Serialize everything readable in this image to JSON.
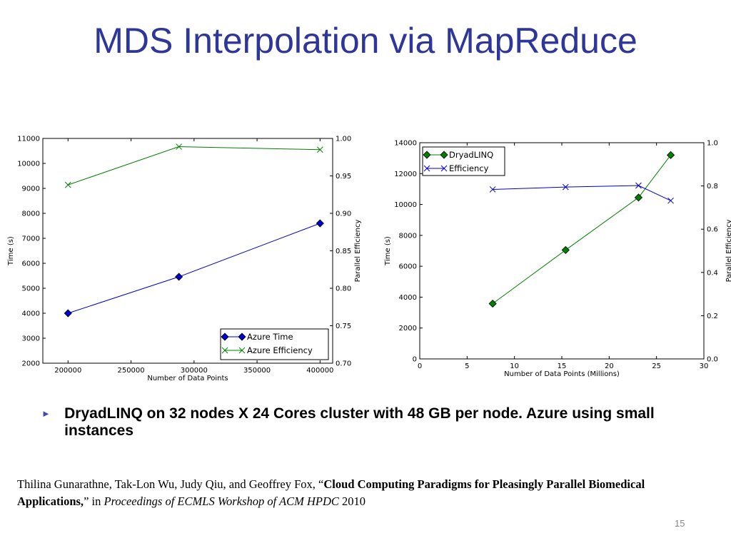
{
  "slide": {
    "title": "MDS Interpolation via MapReduce",
    "bullet": "DryadLINQ on 32 nodes X 24 Cores cluster with 48 GB per node. Azure using small instances",
    "citation": {
      "authors": "Thilina Gunarathne, Tak-Lon Wu, Judy Qiu, and Geoffrey Fox, “",
      "paper_title": "Cloud Computing Paradigms for Pleasingly Parallel Biomedical Applications,",
      "close_quote": "” in ",
      "venue": "Proceedings of ECMLS Workshop of ACM HPDC",
      "year": " 2010"
    },
    "page_number": "15",
    "colors": {
      "title": "#2f3699",
      "blue_series": "#0000cc",
      "green_series": "#008000"
    }
  },
  "chart_data": [
    {
      "type": "line",
      "xlabel": "Number of Data Points",
      "ylabel": "Time (s)",
      "y2label": "Parallel Efficiency",
      "xlim": [
        180000,
        410000
      ],
      "ylim": [
        2000,
        11000
      ],
      "y2lim": [
        0.7,
        1.0
      ],
      "xticks": [
        200000,
        250000,
        300000,
        350000,
        400000
      ],
      "yticks": [
        2000,
        3000,
        4000,
        5000,
        6000,
        7000,
        8000,
        9000,
        10000,
        11000
      ],
      "y2ticks": [
        "0.70",
        "0.75",
        "0.80",
        "0.85",
        "0.90",
        "0.95",
        "1.00"
      ],
      "grid": false,
      "legend_position": "bottom-right",
      "series": [
        {
          "name": "Azure Time",
          "axis": "left",
          "marker": "diamond",
          "color": "#0000cc",
          "x": [
            200000,
            288000,
            400000
          ],
          "values": [
            4000,
            5460,
            7600
          ]
        },
        {
          "name": "Azure Efficiency",
          "axis": "right",
          "marker": "x",
          "color": "#008000",
          "x": [
            200000,
            288000,
            400000
          ],
          "values": [
            0.938,
            0.989,
            0.985
          ]
        }
      ]
    },
    {
      "type": "line",
      "xlabel": "Number of Data Points (Millions)",
      "ylabel": "Time (s)",
      "y2label": "Parallel Efficiency",
      "xlim": [
        0,
        30
      ],
      "ylim": [
        0,
        14000
      ],
      "y2lim": [
        0.0,
        1.0
      ],
      "xticks": [
        0,
        5,
        10,
        15,
        20,
        25,
        30
      ],
      "yticks": [
        0,
        2000,
        4000,
        6000,
        8000,
        10000,
        12000,
        14000
      ],
      "y2ticks": [
        "0.0",
        "0.2",
        "0.4",
        "0.6",
        "0.8",
        "1.0"
      ],
      "grid": false,
      "legend_position": "top-left",
      "series": [
        {
          "name": "DryadLINQ",
          "axis": "left",
          "marker": "diamond",
          "color": "#008000",
          "x": [
            7.7,
            15.4,
            23.1,
            26.5
          ],
          "values": [
            3580,
            7050,
            10450,
            13200
          ]
        },
        {
          "name": "Efficiency",
          "axis": "right",
          "marker": "x",
          "color": "#0000cc",
          "x": [
            7.7,
            15.4,
            23.1,
            26.5
          ],
          "values": [
            0.784,
            0.795,
            0.802,
            0.732
          ]
        }
      ]
    }
  ]
}
